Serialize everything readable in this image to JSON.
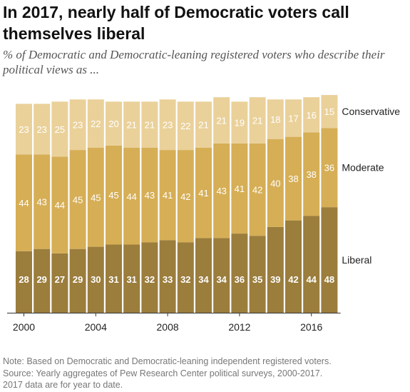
{
  "title": "In 2017, nearly half of Democratic voters call themselves liberal",
  "subtitle": "% of Democratic and Democratic-leaning registered voters who describe their political views as ...",
  "chart_data": {
    "type": "bar",
    "stacked": true,
    "categories": [
      "2000",
      "2001",
      "2002",
      "2003",
      "2004",
      "2005",
      "2006",
      "2007",
      "2008",
      "2009",
      "2010",
      "2011",
      "2012",
      "2013",
      "2014",
      "2015",
      "2016",
      "2017"
    ],
    "x_tick_labels": [
      "2000",
      "2004",
      "2008",
      "2012",
      "2016"
    ],
    "series": [
      {
        "name": "Liberal",
        "color": "#9b7d3c",
        "values": [
          28,
          29,
          27,
          29,
          30,
          31,
          31,
          32,
          33,
          32,
          34,
          34,
          36,
          35,
          39,
          42,
          44,
          48
        ]
      },
      {
        "name": "Moderate",
        "color": "#d6ae55",
        "values": [
          44,
          43,
          44,
          45,
          45,
          45,
          44,
          43,
          41,
          42,
          41,
          43,
          41,
          42,
          40,
          38,
          38,
          36
        ]
      },
      {
        "name": "Conservative",
        "color": "#ead19a",
        "values": [
          23,
          23,
          25,
          23,
          22,
          20,
          21,
          21,
          23,
          22,
          21,
          21,
          19,
          21,
          18,
          17,
          16,
          15
        ]
      }
    ],
    "legend_placement": "right, labels beside last bar",
    "grid": false
  },
  "note": [
    "Note: Based on Democratic and Democratic-leaning independent registered voters.",
    "Source: Yearly aggregates of Pew Research Center political surveys, 2000-2017.",
    "2017 data are for year to date."
  ]
}
